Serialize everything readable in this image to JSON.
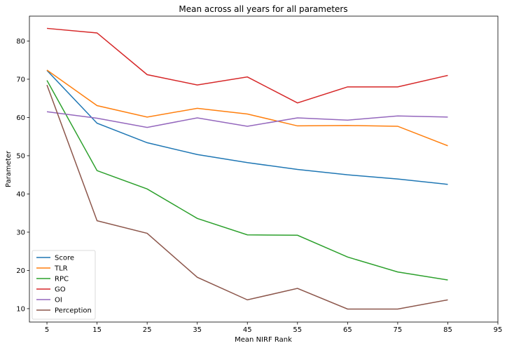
{
  "chart_data": {
    "type": "line",
    "title": "Mean across all years for all parameters",
    "xlabel": "Mean NIRF Rank",
    "ylabel": "Parameter",
    "x": [
      5,
      15,
      25,
      35,
      45,
      55,
      65,
      75,
      85
    ],
    "xticks": [
      5,
      15,
      25,
      35,
      45,
      55,
      65,
      75,
      85,
      95
    ],
    "xlim": [
      1.5,
      95
    ],
    "yticks": [
      10,
      20,
      30,
      40,
      50,
      60,
      70,
      80
    ],
    "ylim": [
      6.5,
      86.5
    ],
    "grid": false,
    "legend_position": "lower-left",
    "series": [
      {
        "name": "Score",
        "color": "#1f77b4",
        "values": [
          72.3,
          58.5,
          53.4,
          50.3,
          48.2,
          46.4,
          45.0,
          43.9,
          42.5
        ]
      },
      {
        "name": "TLR",
        "color": "#ff7f0e",
        "values": [
          72.4,
          63.1,
          60.1,
          62.4,
          60.9,
          57.8,
          57.9,
          57.7,
          52.6
        ]
      },
      {
        "name": "RPC",
        "color": "#2ca02c",
        "values": [
          69.7,
          46.1,
          41.3,
          33.6,
          29.3,
          29.2,
          23.5,
          19.6,
          17.5
        ]
      },
      {
        "name": "GO",
        "color": "#d62728",
        "values": [
          83.3,
          82.1,
          71.2,
          68.5,
          70.6,
          63.8,
          68.0,
          68.0,
          71.0
        ]
      },
      {
        "name": "OI",
        "color": "#9467bd",
        "values": [
          61.5,
          59.8,
          57.4,
          59.9,
          57.7,
          59.9,
          59.3,
          60.4,
          60.1
        ]
      },
      {
        "name": "Perception",
        "color": "#8c564b",
        "values": [
          68.5,
          33.0,
          29.7,
          18.2,
          12.3,
          15.3,
          9.9,
          9.9,
          12.3
        ]
      }
    ]
  }
}
